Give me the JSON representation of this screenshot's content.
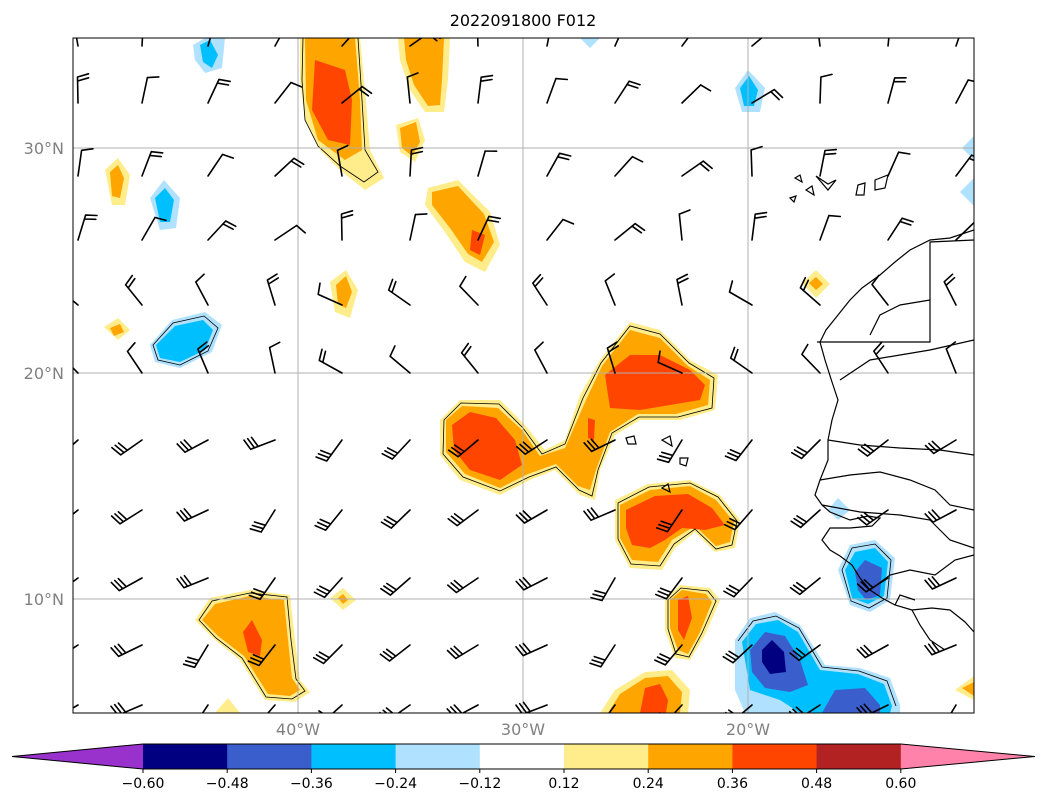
{
  "title": "2022091800 F012",
  "map": {
    "lat_labels": [
      "30°N",
      "20°N",
      "10°N"
    ],
    "lon_labels": [
      "40°W",
      "30°W",
      "20°W"
    ],
    "gridlines": true,
    "field_palette": {
      "neg5": "#9932CC",
      "neg4": "#000080",
      "neg3": "#3A5FCD",
      "neg2": "#00BFFF",
      "neg1": "#B0E2FF",
      "zero": "#FFFFFF",
      "pos1": "#FFEC8B",
      "pos2": "#FFA500",
      "pos3": "#FF4500",
      "pos4": "#B22222",
      "pos5": "#FF82AB"
    },
    "wind_barbs": "black",
    "coastline": "black"
  },
  "colorbar": {
    "tick_labels": [
      "−0.60",
      "−0.48",
      "−0.36",
      "−0.24",
      "−0.12",
      "0.12",
      "0.24",
      "0.36",
      "0.48",
      "0.60"
    ],
    "colors": [
      "#9932CC",
      "#000080",
      "#3A5FCD",
      "#00BFFF",
      "#B0E2FF",
      "#FFFFFF",
      "#FFEC8B",
      "#FFA500",
      "#FF4500",
      "#B22222",
      "#FF82AB"
    ]
  }
}
